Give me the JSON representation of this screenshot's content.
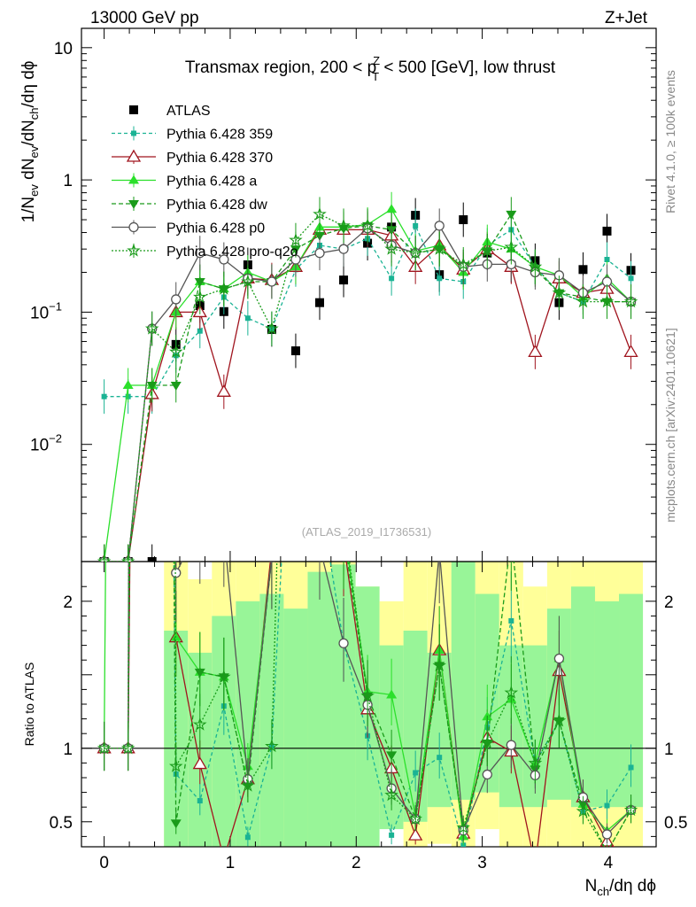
{
  "header": {
    "left": "13000 GeV pp",
    "right": "Z+Jet"
  },
  "side": {
    "rivet": "Rivet 4.1.0, ≥ 100k events",
    "mcplots": "mcplots.cern.ch [arXiv:2401.10621]"
  },
  "chart_data": {
    "type": "scatter",
    "title": "Transmax region, 200 < p_T^Z < 500 [GeV], low thrust",
    "analysis_id": "(ATLAS_2019_I1736531)",
    "xlabel": "N_ch/dη dφ",
    "ylabel": "1/N_ev dN_ev/dN_ch/dη dφ",
    "ratio_ylabel": "Ratio to ATLAS",
    "xlim": [
      -0.18,
      4.38
    ],
    "ylim": [
      0.0013,
      14
    ],
    "yscale": "log",
    "ratio_ylim": [
      0.33,
      2.27
    ],
    "x_ticks": [
      "0",
      "1",
      "2",
      "3",
      "4"
    ],
    "y_ticks": [
      "10",
      "1",
      "10^-1",
      "10^-2"
    ],
    "ratio_ticks": [
      "2",
      "1",
      "0.5"
    ],
    "x": [
      0.0,
      0.19,
      0.38,
      0.57,
      0.76,
      0.95,
      1.14,
      1.33,
      1.52,
      1.71,
      1.9,
      2.09,
      2.28,
      2.47,
      2.66,
      2.85,
      3.04,
      3.23,
      3.42,
      3.61,
      3.8,
      3.99,
      4.18
    ],
    "series": [
      {
        "name": "ATLAS",
        "color": "#000000",
        "values": [
          0.0013,
          0.0013,
          0.0013,
          0.057,
          0.112,
          0.101,
          0.228,
          0.074,
          0.051,
          0.118,
          0.175,
          0.332,
          0.44,
          0.54,
          0.192,
          0.5,
          0.28,
          0.225,
          0.245,
          0.118,
          0.21,
          0.41,
          0.207
        ]
      },
      {
        "name": "Pythia 6.428 359",
        "color": "#1ab394",
        "values": [
          0.023,
          0.023,
          0.023,
          0.047,
          0.072,
          0.13,
          0.09,
          0.075,
          0.21,
          0.32,
          0.3,
          0.36,
          0.18,
          0.45,
          0.18,
          0.17,
          0.32,
          0.42,
          0.22,
          0.14,
          0.12,
          0.25,
          0.18
        ]
      },
      {
        "name": "Pythia 6.428 370",
        "color": "#a0141e",
        "values": [
          0.0013,
          0.0013,
          0.024,
          0.1,
          0.1,
          0.025,
          0.18,
          0.175,
          0.22,
          0.42,
          0.42,
          0.42,
          0.38,
          0.22,
          0.32,
          0.21,
          0.3,
          0.22,
          0.05,
          0.18,
          0.14,
          0.15,
          0.05
        ]
      },
      {
        "name": "Pythia 6.428 a",
        "color": "#2be02b",
        "values": [
          0.0013,
          0.028,
          0.028,
          0.1,
          0.17,
          0.15,
          0.2,
          0.17,
          0.22,
          0.44,
          0.44,
          0.46,
          0.6,
          0.29,
          0.32,
          0.2,
          0.34,
          0.3,
          0.22,
          0.19,
          0.13,
          0.18,
          0.12
        ]
      },
      {
        "name": "Pythia 6.428 dw",
        "color": "#1a9b1a",
        "values": [
          0.0013,
          0.0013,
          0.028,
          0.028,
          0.17,
          0.15,
          0.17,
          0.17,
          0.3,
          0.38,
          0.43,
          0.45,
          0.42,
          0.28,
          0.3,
          0.22,
          0.29,
          0.55,
          0.21,
          0.14,
          0.13,
          0.12,
          0.12
        ]
      },
      {
        "name": "Pythia 6.428 p0",
        "color": "#555555",
        "values": [
          0.0013,
          0.0013,
          0.075,
          0.125,
          0.28,
          0.25,
          0.18,
          0.17,
          0.25,
          0.28,
          0.3,
          0.43,
          0.32,
          0.28,
          0.45,
          0.22,
          0.23,
          0.23,
          0.2,
          0.19,
          0.14,
          0.17,
          0.12
        ]
      },
      {
        "name": "Pythia 6.428 pro-q2o",
        "color": "#1a9b1a",
        "values": [
          0.0013,
          0.0013,
          0.075,
          0.05,
          0.13,
          0.15,
          0.17,
          0.075,
          0.35,
          0.55,
          0.45,
          0.45,
          0.3,
          0.28,
          0.3,
          0.23,
          0.29,
          0.31,
          0.22,
          0.14,
          0.12,
          0.12,
          0.12
        ]
      }
    ],
    "ratio_band": {
      "x_edges": [
        0.475,
        0.665,
        0.855,
        1.045,
        1.235,
        1.425,
        1.615,
        1.805,
        1.995,
        2.185,
        2.375,
        2.565,
        2.755,
        2.945,
        3.135,
        3.325,
        3.515,
        3.705,
        3.895,
        4.085,
        4.275
      ],
      "stat_low": [
        0.33,
        0.33,
        0.33,
        0.33,
        0.33,
        0.33,
        0.33,
        0.33,
        0.33,
        0.45,
        0.5,
        0.6,
        0.65,
        0.7,
        0.6,
        0.6,
        0.65,
        0.6,
        0.6,
        0.6
      ],
      "stat_high": [
        1.8,
        1.65,
        1.9,
        2.0,
        2.05,
        1.95,
        2.2,
        2.25,
        2.1,
        1.7,
        1.8,
        1.65,
        2.27,
        2.05,
        1.7,
        1.7,
        1.95,
        2.1,
        2.0,
        2.05
      ],
      "syst_low": [
        0.33,
        0.35,
        0.33,
        0.6,
        0.33,
        0.33,
        0.33,
        0.33,
        0.6,
        0.55,
        0.33,
        0.35,
        0.33,
        0.45,
        0.33,
        0.33,
        0.33,
        0.33,
        0.33,
        0.33
      ],
      "syst_high": [
        2.27,
        2.15,
        2.27,
        2.27,
        2.27,
        2.27,
        2.27,
        2.27,
        2.1,
        2.0,
        2.27,
        2.27,
        2.27,
        2.27,
        2.27,
        2.1,
        2.27,
        2.27,
        2.27,
        2.27
      ]
    }
  },
  "colors": {
    "stat_band": "#98f598",
    "syst_band": "#ffff99",
    "axis": "#000000"
  }
}
